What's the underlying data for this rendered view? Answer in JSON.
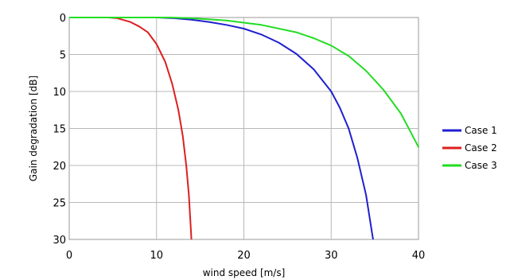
{
  "chart_data": {
    "type": "line",
    "xlabel": "wind speed [m/s]",
    "ylabel": "Gain degradation [dB]",
    "xlim": [
      0,
      40
    ],
    "ylim": [
      0,
      30
    ],
    "y_inverted": true,
    "grid": true,
    "legend_position": "right",
    "x_ticks": [
      0,
      10,
      20,
      30,
      40
    ],
    "y_ticks": [
      0,
      5,
      10,
      15,
      20,
      25,
      30
    ],
    "series": [
      {
        "name": "Case 1",
        "color": "#1f1fd0",
        "x": [
          0,
          10,
          12,
          14,
          16,
          18,
          20,
          22,
          24,
          26,
          28,
          30,
          31,
          32,
          33,
          34,
          34.8
        ],
        "y": [
          0,
          0,
          0.1,
          0.3,
          0.6,
          1.0,
          1.5,
          2.3,
          3.4,
          4.9,
          7.0,
          10.0,
          12.2,
          15.0,
          19.0,
          24.0,
          30.0
        ]
      },
      {
        "name": "Case 2",
        "color": "#dd1f1f",
        "x": [
          0,
          4.5,
          5.5,
          7,
          8,
          9,
          10,
          11,
          11.8,
          12.5,
          13,
          13.4,
          13.7,
          14.0
        ],
        "y": [
          0,
          0,
          0.1,
          0.6,
          1.2,
          2.0,
          3.6,
          6.0,
          9.0,
          12.5,
          16.0,
          20.0,
          24.0,
          30.0
        ]
      },
      {
        "name": "Case 3",
        "color": "#22dd22",
        "x": [
          0,
          11.5,
          14,
          18,
          22,
          26,
          28,
          30,
          32,
          34,
          36,
          38,
          40
        ],
        "y": [
          0,
          0,
          0.1,
          0.4,
          1.0,
          2.0,
          2.8,
          3.8,
          5.2,
          7.2,
          9.8,
          13.0,
          17.5
        ]
      }
    ]
  }
}
